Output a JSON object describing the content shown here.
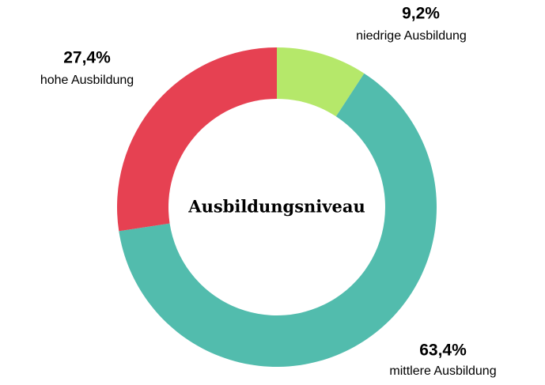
{
  "chart_data": {
    "type": "donut",
    "title": "Ausbildungsniveau",
    "categories": [
      "niedrige Ausbildung",
      "mittlere Ausbildung",
      "hohe Ausbildung"
    ],
    "values": [
      9.2,
      63.4,
      27.4
    ],
    "value_labels": [
      "9,2%",
      "63,4%",
      "27,4%"
    ],
    "colors": [
      "#b5e86a",
      "#52bcad",
      "#e64152"
    ]
  }
}
